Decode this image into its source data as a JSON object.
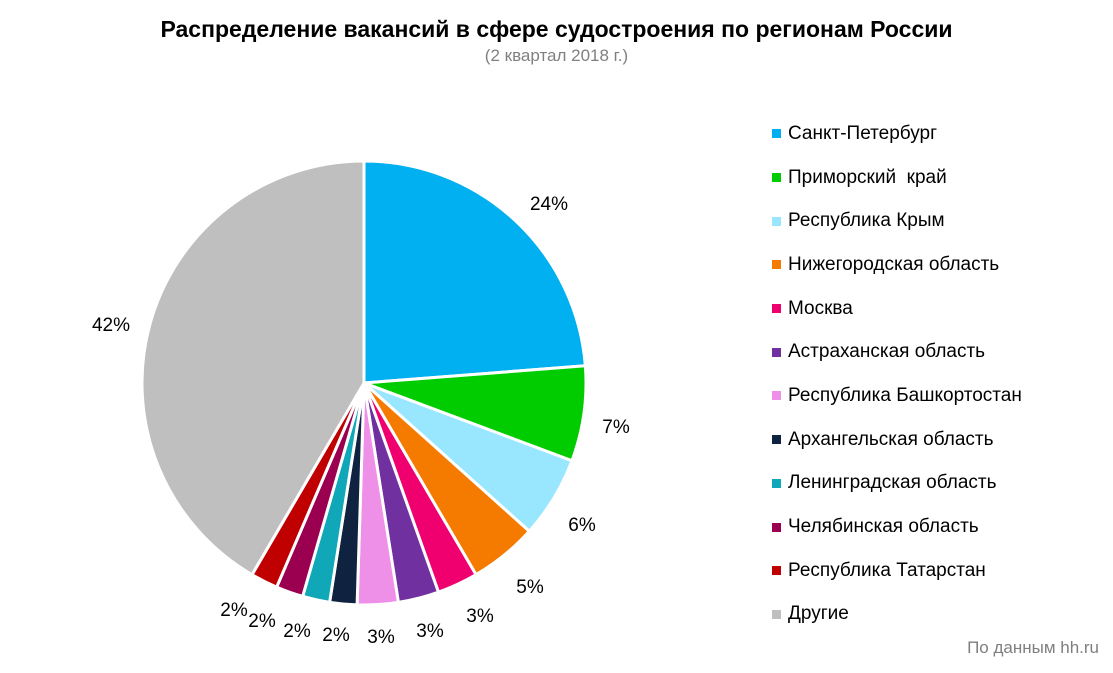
{
  "chart_data": {
    "type": "pie",
    "title": "Распределение вакансий в сфере судостроения по регионам России",
    "subtitle": "(2 квартал 2018 г.)",
    "categories": [
      "Санкт-Петербург",
      "Приморский  край",
      "Республика Крым",
      "Нижегородская область",
      "Москва",
      "Астраханская область",
      "Республика Башкортостан",
      "Архангельская область",
      "Ленинградская область",
      "Челябинская область",
      "Республика Татарстан",
      "Другие"
    ],
    "values": [
      24,
      7,
      6,
      5,
      3,
      3,
      3,
      2,
      2,
      2,
      2,
      42
    ],
    "labels": [
      "24%",
      "7%",
      "6%",
      "5%",
      "3%",
      "3%",
      "3%",
      "2%",
      "2%",
      "2%",
      "2%",
      "42%"
    ],
    "colors": [
      "#00b0f0",
      "#00cc00",
      "#99e6ff",
      "#f47a00",
      "#f0006e",
      "#7030a0",
      "#ee90e8",
      "#0f2240",
      "#10a8b8",
      "#9b0050",
      "#c00000",
      "#bfbfbf"
    ],
    "legend_position": "right"
  },
  "source_note": "По данным  hh.ru"
}
